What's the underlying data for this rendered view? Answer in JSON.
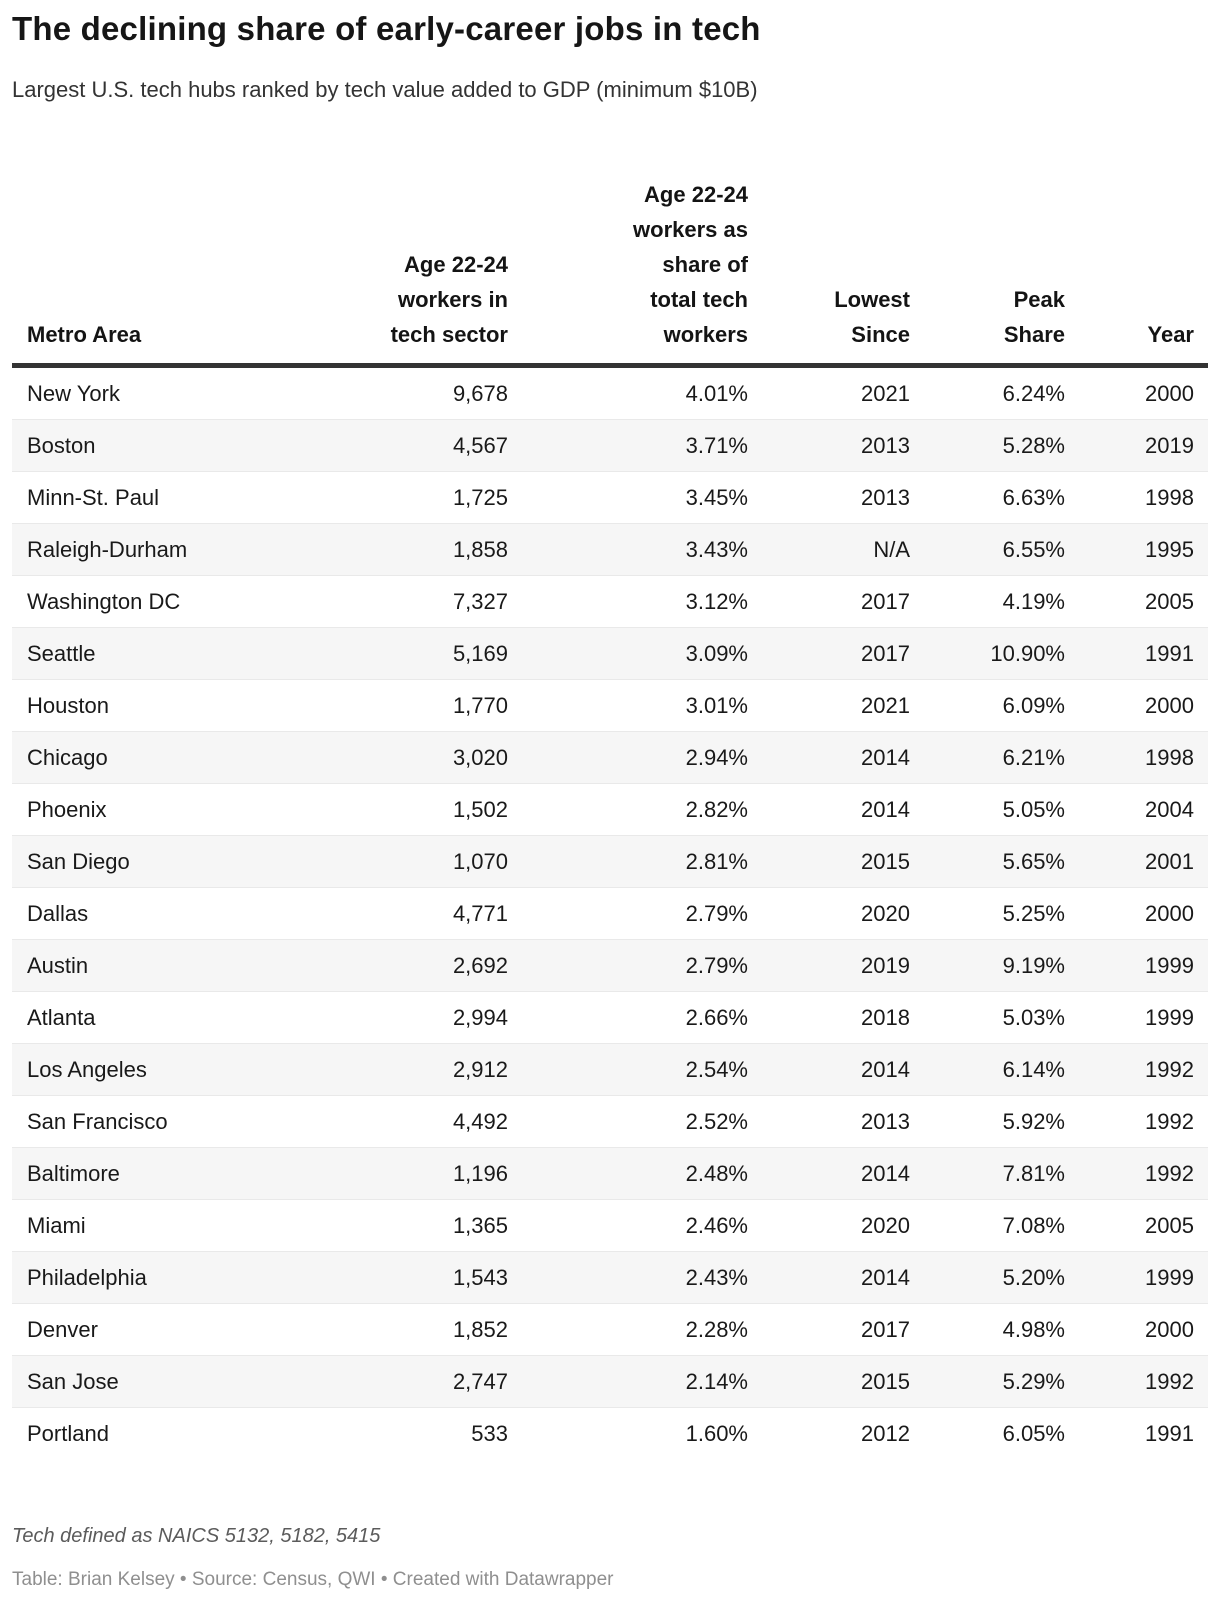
{
  "chart_data": {
    "type": "table",
    "title": "The declining share of early-career jobs in tech",
    "subtitle": "Largest U.S. tech hubs ranked by tech value added to GDP (minimum $10B)",
    "columns": [
      {
        "label": "Metro Area",
        "align": "left"
      },
      {
        "label": "Age 22-24\nworkers in\ntech sector",
        "align": "right"
      },
      {
        "label": "Age 22-24\nworkers as\nshare of\ntotal tech\nworkers",
        "align": "right"
      },
      {
        "label": "Lowest\nSince",
        "align": "right"
      },
      {
        "label": "Peak\nShare",
        "align": "right"
      },
      {
        "label": "Year",
        "align": "right"
      }
    ],
    "rows": [
      [
        "New York",
        "9,678",
        "4.01%",
        "2021",
        "6.24%",
        "2000"
      ],
      [
        "Boston",
        "4,567",
        "3.71%",
        "2013",
        "5.28%",
        "2019"
      ],
      [
        "Minn-St. Paul",
        "1,725",
        "3.45%",
        "2013",
        "6.63%",
        "1998"
      ],
      [
        "Raleigh-Durham",
        "1,858",
        "3.43%",
        "N/A",
        "6.55%",
        "1995"
      ],
      [
        "Washington DC",
        "7,327",
        "3.12%",
        "2017",
        "4.19%",
        "2005"
      ],
      [
        "Seattle",
        "5,169",
        "3.09%",
        "2017",
        "10.90%",
        "1991"
      ],
      [
        "Houston",
        "1,770",
        "3.01%",
        "2021",
        "6.09%",
        "2000"
      ],
      [
        "Chicago",
        "3,020",
        "2.94%",
        "2014",
        "6.21%",
        "1998"
      ],
      [
        "Phoenix",
        "1,502",
        "2.82%",
        "2014",
        "5.05%",
        "2004"
      ],
      [
        "San Diego",
        "1,070",
        "2.81%",
        "2015",
        "5.65%",
        "2001"
      ],
      [
        "Dallas",
        "4,771",
        "2.79%",
        "2020",
        "5.25%",
        "2000"
      ],
      [
        "Austin",
        "2,692",
        "2.79%",
        "2019",
        "9.19%",
        "1999"
      ],
      [
        "Atlanta",
        "2,994",
        "2.66%",
        "2018",
        "5.03%",
        "1999"
      ],
      [
        "Los Angeles",
        "2,912",
        "2.54%",
        "2014",
        "6.14%",
        "1992"
      ],
      [
        "San Francisco",
        "4,492",
        "2.52%",
        "2013",
        "5.92%",
        "1992"
      ],
      [
        "Baltimore",
        "1,196",
        "2.48%",
        "2014",
        "7.81%",
        "1992"
      ],
      [
        "Miami",
        "1,365",
        "2.46%",
        "2020",
        "7.08%",
        "2005"
      ],
      [
        "Philadelphia",
        "1,543",
        "2.43%",
        "2014",
        "5.20%",
        "1999"
      ],
      [
        "Denver",
        "1,852",
        "2.28%",
        "2017",
        "4.98%",
        "2000"
      ],
      [
        "San Jose",
        "2,747",
        "2.14%",
        "2015",
        "5.29%",
        "1992"
      ],
      [
        "Portland",
        "533",
        "1.60%",
        "2012",
        "6.05%",
        "1991"
      ]
    ],
    "layout_hints": {
      "striped_rows": true,
      "header_rule_color": "#333333",
      "stripe_color": "#f6f6f6"
    }
  },
  "footer": {
    "note": "Tech defined as NAICS 5132, 5182, 5415",
    "byline": "Table: Brian Kelsey • Source: Census, QWI • Created with Datawrapper"
  }
}
